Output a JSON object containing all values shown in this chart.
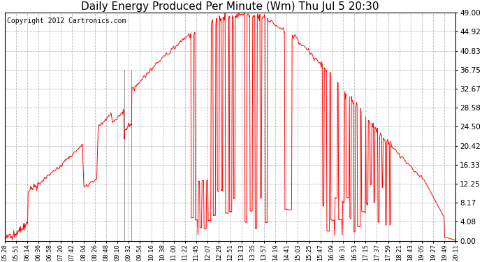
{
  "title": "Daily Energy Produced Per Minute (Wm) Thu Jul 5 20:30",
  "copyright": "Copyright 2012 Cartronics.com",
  "yticks": [
    0.0,
    4.08,
    8.17,
    12.25,
    16.33,
    20.42,
    24.5,
    28.58,
    32.67,
    36.75,
    40.83,
    44.92,
    49.0
  ],
  "ymax": 49.0,
  "ymin": 0.0,
  "line_color": "red",
  "dark_line_color": "#444444",
  "grid_color": "#aaaaaa",
  "background_color": "#ffffff",
  "title_fontsize": 11,
  "copyright_fontsize": 7,
  "xtick_labels": [
    "05:28",
    "05:51",
    "06:14",
    "06:36",
    "06:58",
    "07:20",
    "07:42",
    "08:04",
    "08:26",
    "08:48",
    "09:10",
    "09:32",
    "09:54",
    "10:16",
    "10:38",
    "11:00",
    "11:22",
    "11:45",
    "12:07",
    "12:29",
    "12:51",
    "13:13",
    "13:35",
    "13:57",
    "14:19",
    "14:41",
    "15:03",
    "15:25",
    "15:47",
    "16:09",
    "16:31",
    "16:53",
    "17:15",
    "17:37",
    "17:59",
    "18:21",
    "18:43",
    "19:05",
    "19:27",
    "19:49",
    "20:11"
  ]
}
